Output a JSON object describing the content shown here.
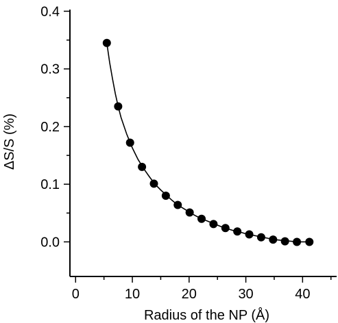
{
  "chart_data": {
    "type": "scatter",
    "xlabel": "Radius of the NP (Å)",
    "ylabel": "ΔS/S (%)",
    "xlim": [
      -1,
      46
    ],
    "ylim": [
      -0.06,
      0.41
    ],
    "xticks": [
      0,
      10,
      20,
      30,
      40
    ],
    "xtick_labels": [
      "0",
      "10",
      "20",
      "30",
      "40"
    ],
    "yticks": [
      0.0,
      0.1,
      0.2,
      0.3,
      0.4
    ],
    "ytick_labels": [
      "0.0",
      "0.1",
      "0.2",
      "0.3",
      "0.4"
    ],
    "grid": false,
    "legend": "none",
    "series": [
      {
        "kind": "markers",
        "color": "#000000",
        "x": [
          5.5,
          7.5,
          9.6,
          11.7,
          13.8,
          15.9,
          18.0,
          20.1,
          22.2,
          24.3,
          26.4,
          28.5,
          30.6,
          32.7,
          34.8,
          36.9,
          39.0,
          41.2
        ],
        "y": [
          0.345,
          0.235,
          0.172,
          0.13,
          0.101,
          0.08,
          0.064,
          0.051,
          0.04,
          0.031,
          0.024,
          0.018,
          0.013,
          0.008,
          0.004,
          0.001,
          0.0,
          0.0
        ]
      },
      {
        "kind": "fit-line",
        "color": "#000000",
        "x": [
          5.5,
          6.0,
          6.5,
          7.0,
          7.5,
          8.0,
          9.0,
          10.0,
          11.0,
          12.0,
          13.0,
          14.0,
          15.0,
          16.0,
          17.0,
          18.0,
          19.0,
          20.0,
          21.0,
          22.0,
          23.0,
          24.0,
          25.0,
          26.0,
          27.0,
          28.0,
          29.0,
          30.0,
          31.0,
          32.0,
          33.0,
          34.0,
          35.0,
          36.0,
          37.0,
          38.0,
          39.0,
          40.0,
          41.2
        ],
        "y": [
          0.345,
          0.311,
          0.283,
          0.257,
          0.235,
          0.216,
          0.187,
          0.163,
          0.143,
          0.127,
          0.113,
          0.1,
          0.09,
          0.081,
          0.072,
          0.064,
          0.058,
          0.052,
          0.046,
          0.041,
          0.037,
          0.033,
          0.029,
          0.025,
          0.022,
          0.019,
          0.017,
          0.014,
          0.012,
          0.01,
          0.008,
          0.006,
          0.004,
          0.003,
          0.002,
          0.001,
          0.0,
          0.0,
          0.0
        ]
      }
    ]
  }
}
